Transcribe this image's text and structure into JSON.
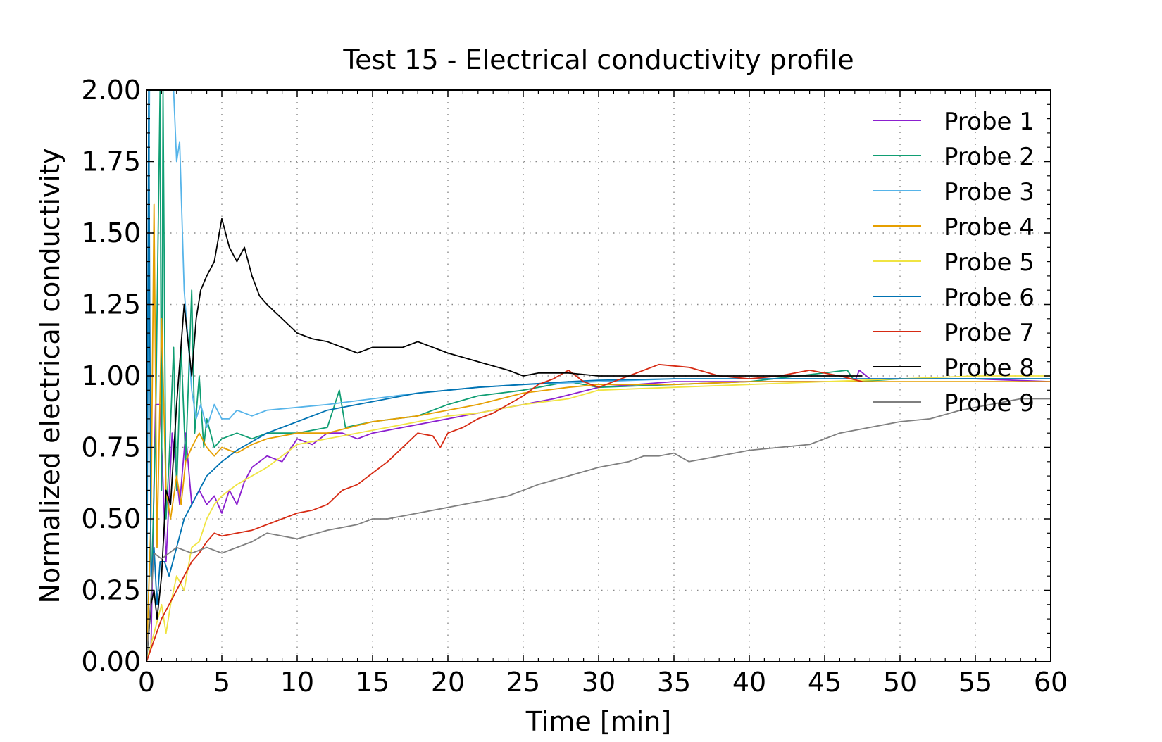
{
  "chart_data": {
    "type": "line",
    "title": "Test 15 - Electrical conductivity profile",
    "xlabel": "Time [min]",
    "ylabel": "Normalized electrical conductivity",
    "xlim": [
      0,
      60
    ],
    "ylim": [
      0,
      2
    ],
    "x_ticks": [
      "0",
      "5",
      "10",
      "15",
      "20",
      "25",
      "30",
      "35",
      "40",
      "45",
      "50",
      "55",
      "60"
    ],
    "y_ticks": [
      "0.00",
      "0.25",
      "0.50",
      "0.75",
      "1.00",
      "1.25",
      "1.50",
      "1.75",
      "2.00"
    ],
    "grid": true,
    "legend_position": "top-right",
    "series": [
      {
        "name": "Probe 1",
        "color": "#8b1fcf",
        "x": [
          0,
          0.3,
          0.6,
          0.9,
          1.3,
          1.7,
          2.2,
          2.6,
          3.0,
          3.5,
          4.0,
          4.5,
          5.0,
          5.5,
          6.0,
          6.5,
          7.0,
          8.0,
          9.0,
          10.0,
          11.0,
          12.0,
          13.0,
          14.0,
          15.0,
          17.0,
          20.0,
          22.0,
          25.0,
          27.0,
          30.0,
          35.0,
          40.0,
          45.0,
          47.0,
          47.3,
          48.0,
          50.0,
          55.0,
          60.0
        ],
        "y": [
          0.0,
          0.05,
          0.9,
          0.9,
          0.35,
          0.8,
          0.55,
          0.8,
          0.55,
          0.6,
          0.55,
          0.58,
          0.52,
          0.6,
          0.55,
          0.63,
          0.68,
          0.72,
          0.7,
          0.78,
          0.76,
          0.8,
          0.8,
          0.78,
          0.8,
          0.82,
          0.85,
          0.87,
          0.9,
          0.92,
          0.96,
          0.98,
          0.98,
          0.98,
          0.98,
          1.02,
          0.99,
          0.99,
          0.99,
          0.98
        ]
      },
      {
        "name": "Probe 2",
        "color": "#109e73",
        "x": [
          0,
          0.3,
          0.6,
          0.9,
          1.0,
          1.1,
          1.3,
          1.5,
          1.8,
          2.0,
          2.3,
          2.6,
          3.0,
          3.2,
          3.5,
          3.8,
          4.0,
          4.5,
          5.0,
          6.0,
          7.0,
          8.0,
          9.0,
          10.0,
          12.0,
          12.8,
          13.2,
          15.0,
          18.0,
          20.0,
          22.0,
          25.0,
          28.0,
          30.0,
          35.0,
          40.0,
          46.5,
          47.0,
          50.0,
          60.0
        ],
        "y": [
          0.0,
          0.2,
          0.8,
          2.0,
          0.6,
          2.0,
          0.5,
          0.7,
          1.1,
          0.6,
          1.1,
          0.7,
          1.3,
          0.8,
          1.0,
          0.75,
          0.85,
          0.75,
          0.78,
          0.8,
          0.78,
          0.8,
          0.8,
          0.8,
          0.82,
          0.95,
          0.82,
          0.84,
          0.86,
          0.9,
          0.93,
          0.95,
          0.98,
          0.96,
          0.97,
          0.98,
          1.02,
          0.98,
          0.99,
          0.99
        ]
      },
      {
        "name": "Probe 3",
        "color": "#56b4e9",
        "x": [
          0,
          0.2,
          0.4,
          0.6,
          0.8,
          1.0,
          1.2,
          1.4,
          1.6,
          1.8,
          2.0,
          2.2,
          2.5,
          2.8,
          3.0,
          3.3,
          3.6,
          4.0,
          4.5,
          5.0,
          5.5,
          6.0,
          7.0,
          8.0,
          10.0,
          12.0,
          15.0,
          18.0,
          20.0,
          22.0,
          25.0,
          30.0,
          35.0,
          40.0,
          45.0,
          50.0,
          55.0,
          60.0
        ],
        "y": [
          0.0,
          2.0,
          2.0,
          2.0,
          2.0,
          2.0,
          2.0,
          2.0,
          2.0,
          2.0,
          1.75,
          1.82,
          1.3,
          1.1,
          0.95,
          0.85,
          0.9,
          0.82,
          0.9,
          0.85,
          0.85,
          0.88,
          0.86,
          0.88,
          0.89,
          0.9,
          0.92,
          0.94,
          0.95,
          0.96,
          0.97,
          0.98,
          0.99,
          0.99,
          0.99,
          0.99,
          0.99,
          0.99
        ]
      },
      {
        "name": "Probe 4",
        "color": "#e69f00",
        "x": [
          0,
          0.3,
          0.5,
          0.7,
          1.0,
          1.3,
          1.6,
          2.0,
          2.3,
          2.6,
          3.0,
          3.5,
          4.0,
          4.5,
          5.0,
          6.0,
          7.0,
          8.0,
          10.0,
          12.0,
          15.0,
          18.0,
          20.0,
          22.0,
          25.0,
          28.0,
          30.0,
          35.0,
          40.0,
          45.0,
          50.0,
          55.0,
          60.0
        ],
        "y": [
          0.0,
          0.5,
          1.6,
          0.4,
          1.2,
          0.6,
          0.5,
          0.65,
          0.55,
          0.7,
          0.75,
          0.8,
          0.75,
          0.72,
          0.75,
          0.73,
          0.76,
          0.78,
          0.8,
          0.8,
          0.84,
          0.86,
          0.88,
          0.9,
          0.94,
          0.96,
          0.97,
          0.97,
          0.98,
          0.98,
          0.98,
          0.98,
          0.98
        ]
      },
      {
        "name": "Probe 5",
        "color": "#f0e442",
        "x": [
          0,
          0.5,
          1.0,
          1.3,
          1.6,
          2.0,
          2.5,
          3.0,
          3.5,
          4.0,
          4.5,
          5.0,
          5.5,
          6.0,
          7.0,
          8.0,
          9.0,
          10.0,
          12.0,
          14.0,
          16.0,
          18.0,
          20.0,
          22.0,
          25.0,
          28.0,
          30.0,
          35.0,
          40.0,
          45.0,
          50.0,
          55.0,
          60.0
        ],
        "y": [
          0.0,
          0.1,
          0.2,
          0.1,
          0.2,
          0.3,
          0.25,
          0.4,
          0.42,
          0.5,
          0.55,
          0.58,
          0.6,
          0.62,
          0.65,
          0.68,
          0.72,
          0.76,
          0.78,
          0.8,
          0.82,
          0.84,
          0.86,
          0.87,
          0.9,
          0.92,
          0.95,
          0.96,
          0.97,
          0.98,
          0.99,
          1.0,
          1.0
        ]
      },
      {
        "name": "Probe 6",
        "color": "#0072b2",
        "x": [
          0,
          0.15,
          0.3,
          0.5,
          0.7,
          0.9,
          1.2,
          1.5,
          2.0,
          2.5,
          3.0,
          3.5,
          4.0,
          5.0,
          6.0,
          7.0,
          8.0,
          10.0,
          12.0,
          15.0,
          18.0,
          20.0,
          22.0,
          25.0,
          28.0,
          30.0,
          35.0,
          40.0,
          45.0,
          50.0,
          55.0,
          60.0
        ],
        "y": [
          0.0,
          2.0,
          0.3,
          0.4,
          0.2,
          0.35,
          0.35,
          0.3,
          0.4,
          0.5,
          0.55,
          0.6,
          0.65,
          0.7,
          0.74,
          0.77,
          0.8,
          0.84,
          0.88,
          0.91,
          0.94,
          0.95,
          0.96,
          0.97,
          0.98,
          0.985,
          0.99,
          0.99,
          0.99,
          0.99,
          0.99,
          0.99
        ]
      },
      {
        "name": "Probe 7",
        "color": "#d62a13",
        "x": [
          0,
          1.0,
          1.5,
          2.0,
          2.5,
          3.0,
          3.5,
          4.0,
          4.5,
          5.0,
          6.0,
          7.0,
          8.0,
          9.0,
          10.0,
          11.0,
          12.0,
          13.0,
          14.0,
          15.0,
          16.0,
          17.0,
          18.0,
          19.0,
          19.5,
          20.0,
          21.0,
          22.0,
          23.0,
          24.0,
          25.0,
          26.0,
          27.0,
          28.0,
          29.0,
          30.0,
          32.0,
          34.0,
          36.0,
          38.0,
          40.0,
          42.0,
          44.0,
          46.0,
          47.5
        ],
        "y": [
          0.0,
          0.15,
          0.2,
          0.25,
          0.3,
          0.35,
          0.38,
          0.42,
          0.45,
          0.44,
          0.45,
          0.46,
          0.48,
          0.5,
          0.52,
          0.53,
          0.55,
          0.6,
          0.62,
          0.66,
          0.7,
          0.75,
          0.8,
          0.79,
          0.75,
          0.8,
          0.82,
          0.85,
          0.87,
          0.9,
          0.93,
          0.97,
          0.99,
          1.02,
          0.98,
          0.96,
          1.0,
          1.04,
          1.03,
          1.0,
          0.99,
          1.0,
          1.02,
          1.0,
          0.98
        ]
      },
      {
        "name": "Probe 8",
        "color": "#000000",
        "x": [
          0,
          0.3,
          0.5,
          0.7,
          1.0,
          1.3,
          1.6,
          2.0,
          2.5,
          3.0,
          3.3,
          3.6,
          4.0,
          4.5,
          5.0,
          5.5,
          6.0,
          6.5,
          7.0,
          7.5,
          8.0,
          9.0,
          10.0,
          11.0,
          12.0,
          13.0,
          14.0,
          15.0,
          16.0,
          17.0,
          18.0,
          19.0,
          20.0,
          22.0,
          24.0,
          25.0,
          26.0,
          28.0,
          30.0,
          35.0,
          40.0,
          45.0,
          47.5
        ],
        "y": [
          0.0,
          0.2,
          0.25,
          0.15,
          0.3,
          0.6,
          0.55,
          0.9,
          1.25,
          1.0,
          1.2,
          1.3,
          1.35,
          1.4,
          1.55,
          1.45,
          1.4,
          1.45,
          1.35,
          1.28,
          1.25,
          1.2,
          1.15,
          1.13,
          1.12,
          1.1,
          1.08,
          1.1,
          1.1,
          1.1,
          1.12,
          1.1,
          1.08,
          1.05,
          1.02,
          1.0,
          1.01,
          1.01,
          1.0,
          1.0,
          1.0,
          1.0,
          1.0
        ]
      },
      {
        "name": "Probe 9",
        "color": "#7f7f7f",
        "x": [
          0,
          0.5,
          1.0,
          1.5,
          2.0,
          3.0,
          4.0,
          5.0,
          6.0,
          7.0,
          8.0,
          9.0,
          10.0,
          12.0,
          14.0,
          15.0,
          16.0,
          18.0,
          20.0,
          22.0,
          24.0,
          26.0,
          28.0,
          30.0,
          32.0,
          33.0,
          34.0,
          35.0,
          36.0,
          38.0,
          40.0,
          42.0,
          44.0,
          46.0,
          48.0,
          50.0,
          52.0,
          54.0,
          56.0,
          58.0,
          60.0
        ],
        "y": [
          0.0,
          0.38,
          0.36,
          0.38,
          0.4,
          0.38,
          0.4,
          0.38,
          0.4,
          0.42,
          0.45,
          0.44,
          0.43,
          0.46,
          0.48,
          0.5,
          0.5,
          0.52,
          0.54,
          0.56,
          0.58,
          0.62,
          0.65,
          0.68,
          0.7,
          0.72,
          0.72,
          0.73,
          0.7,
          0.72,
          0.74,
          0.75,
          0.76,
          0.8,
          0.82,
          0.84,
          0.85,
          0.88,
          0.9,
          0.92,
          0.92
        ]
      }
    ]
  }
}
